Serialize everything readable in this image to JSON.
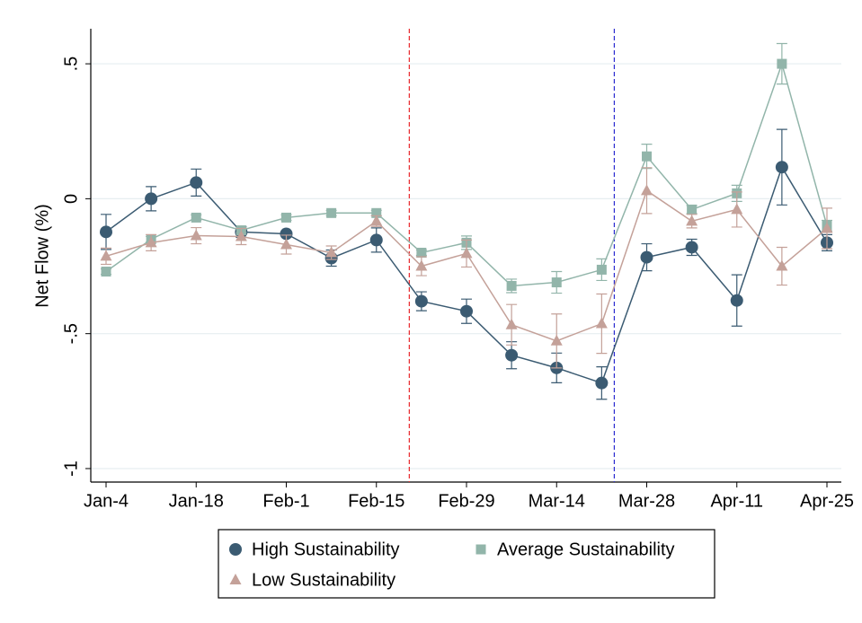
{
  "chart_data": {
    "type": "line",
    "categories": [
      "Jan-4",
      null,
      "Jan-18",
      null,
      "Feb-1",
      null,
      "Feb-15",
      null,
      "Feb-29",
      null,
      "Mar-14",
      null,
      "Mar-28",
      null,
      "Apr-11",
      null,
      "Apr-25"
    ],
    "y_label": "Net Flow (%)",
    "ylim": [
      -1.05,
      0.63
    ],
    "yticks": [
      {
        "value": 0.5,
        "label": ".5"
      },
      0,
      {
        "value": -0.5,
        "label": "-.5"
      },
      -1
    ],
    "grid": true,
    "vlines": [
      {
        "x": 6.73,
        "color": "#e8262a"
      },
      {
        "x": 11.28,
        "color": "#2b2bd0"
      }
    ],
    "series": [
      {
        "name": "High Sustainability",
        "color": "#3b5b72",
        "marker": "circle",
        "values": [
          -0.123,
          0.0,
          0.06,
          -0.123,
          -0.13,
          -0.22,
          -0.153,
          -0.38,
          -0.417,
          -0.58,
          -0.627,
          -0.683,
          -0.217,
          -0.18,
          -0.377,
          0.117,
          -0.163
        ],
        "errors": [
          0.065,
          0.045,
          0.05,
          0.02,
          0.01,
          0.03,
          0.045,
          0.035,
          0.045,
          0.05,
          0.055,
          0.06,
          0.05,
          0.03,
          0.095,
          0.14,
          0.03
        ]
      },
      {
        "name": "Average Sustainability",
        "color": "#92b5aa",
        "marker": "square",
        "values": [
          -0.27,
          -0.15,
          -0.07,
          -0.117,
          -0.07,
          -0.053,
          -0.053,
          -0.2,
          -0.163,
          -0.323,
          -0.31,
          -0.263,
          0.157,
          -0.04,
          0.02,
          0.5,
          -0.1
        ],
        "errors": [
          0.01,
          0.01,
          0.01,
          0.01,
          0.01,
          0.01,
          0.01,
          0.01,
          0.025,
          0.025,
          0.04,
          0.04,
          0.045,
          0.015,
          0.03,
          0.075,
          0.02
        ]
      },
      {
        "name": "Low Sustainability",
        "color": "#c4a199",
        "marker": "triangle",
        "values": [
          -0.213,
          -0.163,
          -0.137,
          -0.14,
          -0.17,
          -0.2,
          -0.083,
          -0.25,
          -0.203,
          -0.467,
          -0.527,
          -0.463,
          0.03,
          -0.083,
          -0.04,
          -0.25,
          -0.11
        ],
        "errors": [
          0.03,
          0.03,
          0.03,
          0.03,
          0.035,
          0.025,
          0.02,
          0.035,
          0.05,
          0.075,
          0.1,
          0.11,
          0.085,
          0.025,
          0.065,
          0.07,
          0.075
        ]
      }
    ]
  }
}
